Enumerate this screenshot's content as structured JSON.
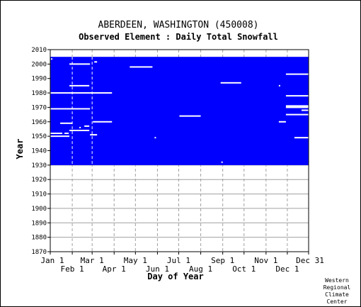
{
  "chart_data": {
    "type": "heatmap",
    "title": "ABERDEEN, WASHINGTON   (450008)",
    "subtitle": "Observed Element : Daily Total Snowfall",
    "xlabel": "Day of Year",
    "ylabel": "Year",
    "xlim": [
      1,
      365
    ],
    "ylim": [
      1870,
      2010
    ],
    "y_ticks": [
      2010,
      2000,
      1990,
      1980,
      1970,
      1960,
      1950,
      1940,
      1930,
      1920,
      1910,
      1900,
      1890,
      1880,
      1870
    ],
    "x_ticks_top_row": [
      {
        "label": "Jan 1",
        "day": 1
      },
      {
        "label": "Mar 1",
        "day": 60
      },
      {
        "label": "May 1",
        "day": 121
      },
      {
        "label": "Jul 1",
        "day": 182
      },
      {
        "label": "Sep 1",
        "day": 244
      },
      {
        "label": "Nov 1",
        "day": 305
      },
      {
        "label": "Dec 31",
        "day": 365
      }
    ],
    "x_ticks_bottom_row": [
      {
        "label": "Feb 1",
        "day": 32
      },
      {
        "label": "Apr 1",
        "day": 91
      },
      {
        "label": "Jun 1",
        "day": 152
      },
      {
        "label": "Aug 1",
        "day": 213
      },
      {
        "label": "Oct 1",
        "day": 274
      },
      {
        "label": "Dec 1",
        "day": 335
      }
    ],
    "data_coverage": {
      "year_start": 1930,
      "year_end": 2005,
      "day_start": 1,
      "day_end": 365,
      "color": "#0000ff"
    },
    "missing_color": "#ffffff",
    "missing_segments": [
      {
        "year": 2003.5,
        "day_start": 2,
        "day_end": 4
      },
      {
        "year": 2001.5,
        "day_start": 63,
        "day_end": 67
      },
      {
        "year": 2000,
        "day_start": 28,
        "day_end": 57
      },
      {
        "year": 1998,
        "day_start": 113,
        "day_end": 145
      },
      {
        "year": 1993,
        "day_start": 333,
        "day_end": 365
      },
      {
        "year": 1987,
        "day_start": 241,
        "day_end": 270
      },
      {
        "year": 1985,
        "day_start": 28,
        "day_end": 56
      },
      {
        "year": 1985,
        "day_start": 323,
        "day_end": 325
      },
      {
        "year": 1980,
        "day_start": 1,
        "day_end": 88
      },
      {
        "year": 1978,
        "day_start": 333,
        "day_end": 365
      },
      {
        "year": 1971,
        "day_start": 333,
        "day_end": 365
      },
      {
        "year": 1970,
        "day_start": 333,
        "day_end": 365
      },
      {
        "year": 1969,
        "day_start": 1,
        "day_end": 57
      },
      {
        "year": 1968,
        "day_start": 355,
        "day_end": 365
      },
      {
        "year": 1965,
        "day_start": 333,
        "day_end": 365
      },
      {
        "year": 1964,
        "day_start": 183,
        "day_end": 213
      },
      {
        "year": 1960,
        "day_start": 61,
        "day_end": 88
      },
      {
        "year": 1960,
        "day_start": 323,
        "day_end": 333
      },
      {
        "year": 1959,
        "day_start": 15,
        "day_end": 32
      },
      {
        "year": 1957,
        "day_start": 49,
        "day_end": 56
      },
      {
        "year": 1956,
        "day_start": 42,
        "day_end": 44
      },
      {
        "year": 1954,
        "day_start": 28,
        "day_end": 56
      },
      {
        "year": 1952,
        "day_start": 1,
        "day_end": 18
      },
      {
        "year": 1952,
        "day_start": 21,
        "day_end": 27
      },
      {
        "year": 1951,
        "day_start": 57,
        "day_end": 67
      },
      {
        "year": 1950,
        "day_start": 1,
        "day_end": 28
      },
      {
        "year": 1949,
        "day_start": 148,
        "day_end": 150
      },
      {
        "year": 1949,
        "day_start": 345,
        "day_end": 365
      },
      {
        "year": 1932,
        "day_start": 242,
        "day_end": 244
      }
    ],
    "grid": true,
    "credit": [
      "Western",
      "Regional",
      "Climate",
      "Center"
    ]
  }
}
